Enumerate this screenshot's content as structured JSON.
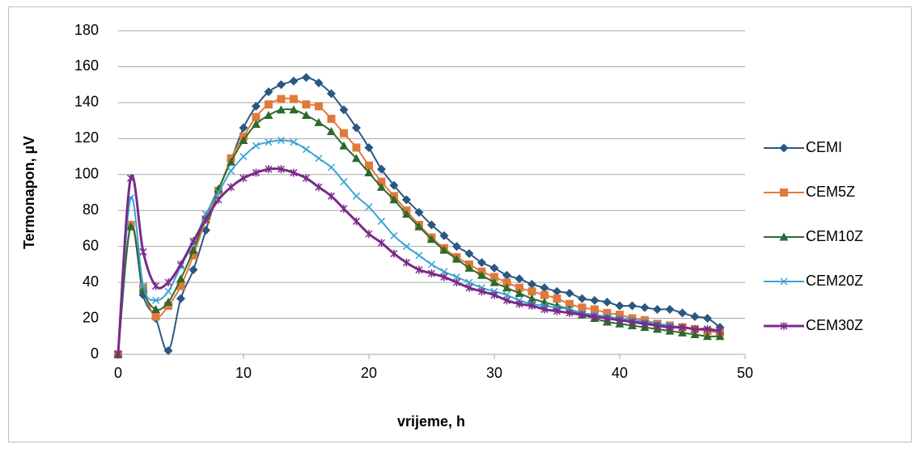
{
  "chart_data": {
    "type": "line",
    "x_label": "vrijeme, h",
    "y_label": "Termonapon, µV",
    "x": [
      0,
      1,
      2,
      3,
      4,
      5,
      6,
      7,
      8,
      9,
      10,
      11,
      12,
      13,
      14,
      15,
      16,
      17,
      18,
      19,
      20,
      21,
      22,
      23,
      24,
      25,
      26,
      27,
      28,
      29,
      30,
      31,
      32,
      33,
      34,
      35,
      36,
      37,
      38,
      39,
      40,
      41,
      42,
      43,
      44,
      45,
      46,
      47,
      48
    ],
    "series": [
      {
        "name": "CEMI",
        "color": "#2a5783",
        "marker": "diamond",
        "values": [
          0,
          72,
          33,
          20,
          2,
          31,
          47,
          69,
          91,
          108,
          126,
          138,
          146,
          150,
          152,
          154,
          151,
          145,
          136,
          126,
          115,
          103,
          94,
          86,
          79,
          72,
          66,
          60,
          56,
          51,
          48,
          44,
          42,
          39,
          37,
          35,
          34,
          31,
          30,
          29,
          27,
          27,
          26,
          25,
          25,
          23,
          21,
          20,
          15
        ]
      },
      {
        "name": "CEM5Z",
        "color": "#e07a3a",
        "marker": "square",
        "values": [
          0,
          72,
          37,
          21,
          27,
          38,
          55,
          75,
          91,
          109,
          121,
          132,
          139,
          142,
          142,
          139,
          138,
          131,
          123,
          115,
          105,
          96,
          88,
          80,
          72,
          65,
          59,
          54,
          50,
          46,
          43,
          40,
          37,
          35,
          33,
          31,
          28,
          26,
          25,
          23,
          22,
          20,
          19,
          17,
          16,
          15,
          14,
          13,
          12
        ]
      },
      {
        "name": "CEM10Z",
        "color": "#2d6a2d",
        "marker": "triangle",
        "values": [
          0,
          71,
          36,
          25,
          29,
          42,
          58,
          77,
          92,
          107,
          119,
          128,
          133,
          136,
          136,
          133,
          129,
          124,
          116,
          109,
          101,
          93,
          86,
          78,
          71,
          64,
          58,
          53,
          48,
          44,
          40,
          37,
          34,
          31,
          29,
          27,
          25,
          22,
          20,
          18,
          17,
          16,
          15,
          14,
          13,
          12,
          11,
          10,
          10
        ]
      },
      {
        "name": "CEM20Z",
        "color": "#3aa3d3",
        "marker": "x",
        "values": [
          0,
          87,
          38,
          30,
          35,
          49,
          62,
          78,
          90,
          102,
          110,
          116,
          118,
          119,
          118,
          114,
          109,
          104,
          96,
          88,
          82,
          74,
          66,
          60,
          55,
          50,
          46,
          43,
          40,
          37,
          35,
          33,
          30,
          28,
          27,
          26,
          25,
          23,
          22,
          21,
          20,
          19,
          18,
          17,
          16,
          15,
          14,
          14,
          13
        ]
      },
      {
        "name": "CEM30Z",
        "color": "#7a2a8a",
        "marker": "star",
        "values": [
          0,
          98,
          57,
          38,
          40,
          50,
          63,
          75,
          86,
          93,
          98,
          101,
          103,
          103,
          101,
          98,
          93,
          88,
          81,
          74,
          67,
          62,
          56,
          51,
          47,
          45,
          43,
          40,
          37,
          35,
          33,
          30,
          28,
          27,
          25,
          24,
          23,
          22,
          21,
          20,
          19,
          18,
          17,
          16,
          15,
          15,
          14,
          14,
          13
        ]
      }
    ],
    "xlim": [
      0,
      50
    ],
    "xticks": [
      0,
      10,
      20,
      30,
      40,
      50
    ],
    "ylim": [
      0,
      180
    ],
    "yticks": [
      0,
      20,
      40,
      60,
      80,
      100,
      120,
      140,
      160,
      180
    ],
    "grid": true,
    "legend": "right"
  }
}
